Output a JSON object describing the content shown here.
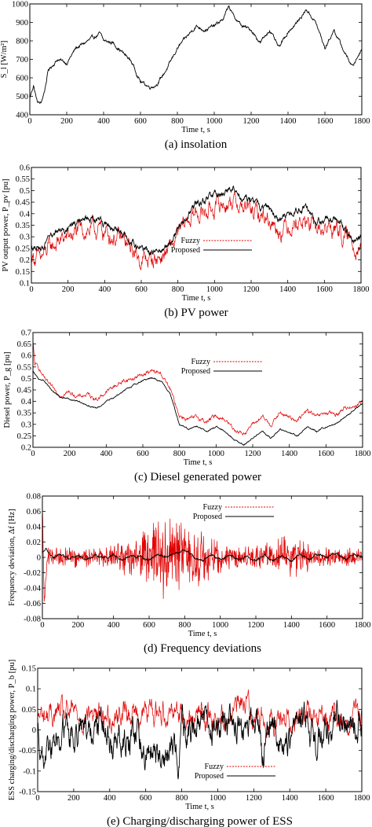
{
  "figure": {
    "charts": [
      {
        "id": "a",
        "type": "line",
        "caption": "(a) insolation",
        "xlabel": "Time t, s",
        "ylabel": "S_l [W/m²]",
        "xlim": [
          0,
          1800
        ],
        "ylim": [
          400,
          1000
        ],
        "xticks": [
          "0",
          "200",
          "400",
          "600",
          "800",
          "1000",
          "1200",
          "1400",
          "1600",
          "1800"
        ],
        "yticks": [
          "400",
          "500",
          "600",
          "700",
          "800",
          "900",
          "1000"
        ],
        "grid": false,
        "legend": [],
        "series": [
          {
            "color": "#000000",
            "noise": 6,
            "x": [
              0,
              20,
              40,
              60,
              80,
              100,
              150,
              200,
              250,
              300,
              350,
              380,
              400,
              450,
              500,
              550,
              600,
              650,
              680,
              700,
              750,
              800,
              850,
              900,
              950,
              1000,
              1050,
              1080,
              1100,
              1150,
              1200,
              1250,
              1300,
              1350,
              1400,
              1450,
              1500,
              1550,
              1600,
              1650,
              1700,
              1750,
              1800
            ],
            "y": [
              490,
              560,
              470,
              460,
              530,
              640,
              700,
              680,
              760,
              790,
              820,
              840,
              800,
              790,
              740,
              690,
              580,
              550,
              560,
              580,
              660,
              760,
              820,
              880,
              860,
              880,
              920,
              990,
              940,
              880,
              860,
              790,
              860,
              760,
              850,
              900,
              970,
              900,
              760,
              860,
              750,
              660,
              760
            ]
          }
        ]
      },
      {
        "id": "b",
        "type": "line",
        "caption": "(b) PV power",
        "xlabel": "Time t, s",
        "ylabel": "PV output power, P_pv [pu]",
        "xlim": [
          0,
          1800
        ],
        "ylim": [
          0.1,
          0.6
        ],
        "xticks": [
          "0",
          "200",
          "400",
          "600",
          "800",
          "1000",
          "1200",
          "1400",
          "1600",
          "1800"
        ],
        "yticks": [
          "0.1",
          "0.15",
          "0.2",
          "0.25",
          "0.3",
          "0.35",
          "0.4",
          "0.45",
          "0.5",
          "0.55",
          "0.6"
        ],
        "grid": false,
        "legend": [
          {
            "name": "Fuzzy",
            "color": "#e00000",
            "dash": "2,1.5"
          },
          {
            "name": "Proposed",
            "color": "#000000",
            "dash": ""
          }
        ],
        "legend_pos": "center-right",
        "series": [
          {
            "name": "Fuzzy",
            "color": "#e00000",
            "noise": 0.025,
            "x": [
              0,
              50,
              100,
              150,
              200,
              250,
              300,
              350,
              400,
              450,
              500,
              550,
              600,
              650,
              700,
              750,
              800,
              850,
              900,
              950,
              1000,
              1050,
              1100,
              1150,
              1200,
              1250,
              1300,
              1350,
              1400,
              1450,
              1500,
              1550,
              1600,
              1650,
              1700,
              1750,
              1800
            ],
            "y": [
              0.22,
              0.2,
              0.25,
              0.28,
              0.3,
              0.32,
              0.33,
              0.33,
              0.32,
              0.3,
              0.28,
              0.24,
              0.2,
              0.2,
              0.21,
              0.24,
              0.3,
              0.37,
              0.4,
              0.41,
              0.43,
              0.44,
              0.46,
              0.43,
              0.41,
              0.39,
              0.38,
              0.33,
              0.35,
              0.37,
              0.36,
              0.33,
              0.33,
              0.34,
              0.31,
              0.27,
              0.27
            ]
          },
          {
            "name": "Proposed",
            "color": "#000000",
            "noise": 0.01,
            "x": [
              0,
              50,
              100,
              150,
              200,
              250,
              300,
              350,
              400,
              450,
              500,
              550,
              600,
              650,
              700,
              750,
              800,
              850,
              900,
              950,
              1000,
              1050,
              1100,
              1150,
              1200,
              1250,
              1300,
              1350,
              1400,
              1450,
              1500,
              1550,
              1600,
              1650,
              1700,
              1750,
              1800
            ],
            "y": [
              0.26,
              0.24,
              0.29,
              0.32,
              0.33,
              0.36,
              0.37,
              0.37,
              0.36,
              0.33,
              0.31,
              0.27,
              0.24,
              0.23,
              0.24,
              0.27,
              0.33,
              0.4,
              0.44,
              0.46,
              0.48,
              0.49,
              0.51,
              0.47,
              0.45,
              0.43,
              0.42,
              0.37,
              0.39,
              0.41,
              0.43,
              0.37,
              0.37,
              0.39,
              0.34,
              0.29,
              0.3
            ]
          }
        ]
      },
      {
        "id": "c",
        "type": "line",
        "caption": "(c) Diesel generated power",
        "xlabel": "Time t, s",
        "ylabel": "Diesel power, P_g [pu]",
        "xlim": [
          0,
          1800
        ],
        "ylim": [
          0.2,
          0.7
        ],
        "xticks": [
          "0",
          "200",
          "400",
          "600",
          "800",
          "1000",
          "1200",
          "1400",
          "1600",
          "1800"
        ],
        "yticks": [
          "0.2",
          "0.25",
          "0.3",
          "0.35",
          "0.4",
          "0.45",
          "0.5",
          "0.55",
          "0.6",
          "0.65",
          "0.7"
        ],
        "grid": false,
        "legend": [
          {
            "name": "Fuzzy",
            "color": "#e00000",
            "dash": "2,1.5"
          },
          {
            "name": "Proposed",
            "color": "#000000",
            "dash": ""
          }
        ],
        "legend_pos": "top-right",
        "series": [
          {
            "name": "Fuzzy",
            "color": "#e00000",
            "noise": 0.006,
            "x": [
              0,
              10,
              30,
              60,
              100,
              150,
              200,
              250,
              300,
              350,
              400,
              450,
              500,
              550,
              600,
              650,
              700,
              750,
              800,
              850,
              900,
              950,
              1000,
              1050,
              1100,
              1150,
              1200,
              1250,
              1300,
              1350,
              1400,
              1450,
              1500,
              1550,
              1600,
              1650,
              1700,
              1750,
              1800
            ],
            "y": [
              0.66,
              0.56,
              0.55,
              0.5,
              0.46,
              0.43,
              0.44,
              0.42,
              0.43,
              0.41,
              0.44,
              0.47,
              0.49,
              0.5,
              0.52,
              0.53,
              0.52,
              0.45,
              0.34,
              0.32,
              0.33,
              0.31,
              0.34,
              0.32,
              0.28,
              0.26,
              0.3,
              0.33,
              0.3,
              0.35,
              0.33,
              0.32,
              0.36,
              0.33,
              0.35,
              0.34,
              0.37,
              0.38,
              0.4
            ]
          },
          {
            "name": "Proposed",
            "color": "#000000",
            "noise": 0.002,
            "x": [
              0,
              10,
              30,
              60,
              100,
              150,
              200,
              250,
              300,
              350,
              400,
              450,
              500,
              550,
              600,
              650,
              700,
              750,
              800,
              850,
              900,
              950,
              1000,
              1050,
              1100,
              1150,
              1200,
              1250,
              1300,
              1350,
              1400,
              1450,
              1500,
              1550,
              1600,
              1650,
              1700,
              1750,
              1800
            ],
            "y": [
              0.53,
              0.52,
              0.5,
              0.49,
              0.45,
              0.42,
              0.41,
              0.4,
              0.38,
              0.37,
              0.4,
              0.42,
              0.45,
              0.47,
              0.49,
              0.5,
              0.49,
              0.43,
              0.3,
              0.28,
              0.29,
              0.27,
              0.29,
              0.27,
              0.23,
              0.21,
              0.24,
              0.27,
              0.24,
              0.28,
              0.26,
              0.25,
              0.29,
              0.27,
              0.29,
              0.3,
              0.33,
              0.36,
              0.39
            ]
          }
        ]
      },
      {
        "id": "d",
        "type": "line",
        "caption": "(d) Frequency deviations",
        "xlabel": "Time t, s",
        "ylabel": "Frequency deviation, Δf [Hz]",
        "xlim": [
          0,
          1800
        ],
        "ylim": [
          -0.08,
          0.08
        ],
        "xticks": [
          "0",
          "200",
          "400",
          "600",
          "800",
          "1000",
          "1200",
          "1400",
          "1600",
          "1800"
        ],
        "yticks": [
          "-0.08",
          "-0.06",
          "-0.04",
          "-0.02",
          "0",
          "0.02",
          "0.04",
          "0.06",
          "0.08"
        ],
        "grid": false,
        "legend": [
          {
            "name": "Fuzzy",
            "color": "#e00000",
            "dash": "2,1.5"
          },
          {
            "name": "Proposed",
            "color": "#000000",
            "dash": ""
          }
        ],
        "legend_pos": "top-right",
        "series": [
          {
            "name": "Fuzzy",
            "color": "#e00000",
            "noise": 0.03,
            "oscillate": true,
            "x": [
              0,
              10,
              30,
              100,
              200,
              300,
              400,
              450,
              500,
              550,
              600,
              650,
              700,
              750,
              800,
              850,
              900,
              950,
              1000,
              1050,
              1100,
              1150,
              1200,
              1300,
              1400,
              1500,
              1600,
              1700,
              1800
            ],
            "y": [
              0.07,
              -0.06,
              0.0,
              0.0,
              0.0,
              0.0,
              0.0,
              0.0,
              0.0,
              0.0,
              0.0,
              0.0,
              0.0,
              0.0,
              0.0,
              0.0,
              0.0,
              0.0,
              0.0,
              0.0,
              0.0,
              0.0,
              0.0,
              0.0,
              0.0,
              0.0,
              0.0,
              0.0,
              0.0
            ]
          },
          {
            "name": "Proposed",
            "color": "#000000",
            "noise": 0.001,
            "x": [
              0,
              20,
              60,
              100,
              150,
              200,
              250,
              300,
              350,
              400,
              450,
              500,
              550,
              600,
              650,
              700,
              750,
              800,
              850,
              900,
              950,
              1000,
              1050,
              1100,
              1150,
              1200,
              1250,
              1300,
              1350,
              1400,
              1450,
              1500,
              1550,
              1600,
              1650,
              1700,
              1750,
              1800
            ],
            "y": [
              0.005,
              0.01,
              0.0,
              0.003,
              -0.002,
              0.002,
              -0.003,
              0.002,
              -0.002,
              0.003,
              -0.003,
              0.002,
              0.0,
              -0.003,
              0.004,
              0.0,
              0.005,
              0.01,
              0.0,
              -0.004,
              0.003,
              -0.003,
              0.004,
              -0.004,
              0.002,
              -0.005,
              0.003,
              -0.004,
              0.002,
              -0.006,
              0.004,
              -0.003,
              0.005,
              -0.002,
              0.006,
              -0.002,
              0.004,
              0.0
            ]
          }
        ]
      },
      {
        "id": "e",
        "type": "line",
        "caption": "(e) Charging/discharging power of ESS",
        "xlabel": "Time t, s",
        "ylabel": "ESS charging/discharging power, P_b [pu]",
        "xlim": [
          0,
          1800
        ],
        "ylim": [
          -0.15,
          0.15
        ],
        "xticks": [
          "0",
          "200",
          "400",
          "600",
          "800",
          "1000",
          "1200",
          "1400",
          "1600",
          "1800"
        ],
        "yticks": [
          "-0.15",
          "-0.1",
          "-0.05",
          "0",
          "0.05",
          "0.1",
          "0.15"
        ],
        "grid": false,
        "legend": [
          {
            "name": "Fuzzy",
            "color": "#e00000",
            "dash": "2,1.5"
          },
          {
            "name": "Proposed",
            "color": "#000000",
            "dash": ""
          }
        ],
        "legend_pos": "bottom-right",
        "series": [
          {
            "name": "Fuzzy",
            "color": "#e00000",
            "noise": 0.02,
            "x": [
              0,
              100,
              200,
              300,
              400,
              500,
              600,
              700,
              780,
              800,
              850,
              900,
              1000,
              1100,
              1140,
              1200,
              1300,
              1400,
              1500,
              1600,
              1700,
              1800
            ],
            "y": [
              0.03,
              0.04,
              0.035,
              0.04,
              0.035,
              0.045,
              0.04,
              0.045,
              0.06,
              0.04,
              0.04,
              0.035,
              0.035,
              0.04,
              0.08,
              0.04,
              0.03,
              0.03,
              0.03,
              0.025,
              0.02,
              0.03
            ]
          },
          {
            "name": "Proposed",
            "color": "#000000",
            "noise": 0.025,
            "x": [
              0,
              40,
              100,
              150,
              200,
              250,
              300,
              350,
              400,
              450,
              500,
              550,
              600,
              650,
              700,
              750,
              780,
              800,
              850,
              900,
              950,
              1000,
              1050,
              1100,
              1150,
              1200,
              1250,
              1300,
              1350,
              1400,
              1450,
              1500,
              1550,
              1600,
              1650,
              1700,
              1750,
              1800
            ],
            "y": [
              0.0,
              -0.06,
              -0.03,
              0.0,
              -0.02,
              0.0,
              -0.02,
              0.01,
              -0.04,
              0.0,
              -0.05,
              -0.02,
              -0.06,
              -0.03,
              -0.07,
              -0.05,
              -0.1,
              -0.02,
              0.01,
              0.0,
              0.02,
              0.02,
              0.03,
              0.02,
              -0.02,
              0.01,
              -0.05,
              0.0,
              -0.03,
              -0.06,
              0.0,
              0.03,
              -0.04,
              -0.02,
              0.01,
              0.02,
              0.0,
              0.02
            ]
          }
        ]
      }
    ]
  }
}
